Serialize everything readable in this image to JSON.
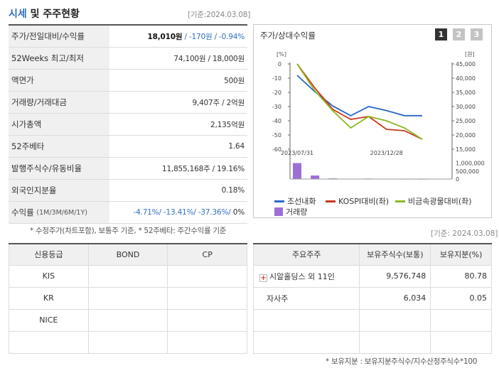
{
  "header": {
    "title_highlight": "시세",
    "title_rest": " 및 주주현황",
    "date": "[기준:2024.03.08]"
  },
  "quote": {
    "rows": [
      {
        "key": "주가/전일대비/수익률",
        "price": "18,010원",
        "change": " / -170원 / -0.94%"
      },
      {
        "key": "52Weeks 최고/최저",
        "value": "74,100원 / 18,000원"
      },
      {
        "key": "액면가",
        "value": "500원"
      },
      {
        "key": "거래량/거래대금",
        "value": "9,407주 / 2억원"
      },
      {
        "key": "시가총액",
        "value": "2,135억원"
      },
      {
        "key": "52주베타",
        "value": "1.64"
      },
      {
        "key": "발행주식수/유동비율",
        "value": "11,855,168주 / 19.16%"
      },
      {
        "key": "외국인지분율",
        "value": "0.18%"
      },
      {
        "key": "수익률",
        "key_sub": "(1M/3M/6M/1Y)",
        "value_blue": "-4.71%/ -13.41%/ -37.36%/",
        "value_tail": " 0%"
      }
    ],
    "note": "* 수정주가(차트포함), 보통주 기준, * 52주베타: 주간수익률 기준"
  },
  "chart_panel": {
    "title": "주가/상대수익률",
    "tabs": [
      "1",
      "2",
      "3"
    ],
    "active_tab": 0,
    "left_unit": "[%]",
    "right_unit": "[원]",
    "vol_right_ticks": [
      "1,000,000",
      "500,000",
      "0"
    ]
  },
  "chart_data": {
    "type": "line",
    "x_ticks": [
      "2023/07/31",
      "2023/12/28"
    ],
    "y_left_ticks": [
      0,
      -10,
      -20,
      -30,
      -40,
      -50,
      -60
    ],
    "y_left_range": [
      -60,
      0
    ],
    "y_right_ticks": [
      45000,
      40000,
      35000,
      30000,
      25000,
      20000,
      15000
    ],
    "y_right_tick_labels": [
      "45,000",
      "40,000",
      "35,000",
      "30,000",
      "25,000",
      "20,000",
      "15,000"
    ],
    "y_right_range": [
      15000,
      45000
    ],
    "series": [
      {
        "name": "조선내화",
        "axis": "right",
        "color": "#2a67c9",
        "values": [
          41000,
          35200,
          30200,
          26800,
          30000,
          28600,
          26800,
          26800
        ]
      },
      {
        "name": "KOSPI대비(좌)",
        "axis": "left",
        "color": "#c83a1e",
        "values": [
          0,
          -17,
          -32,
          -39,
          -37,
          -46,
          -47,
          -53
        ]
      },
      {
        "name": "비금속광물대비(좌)",
        "axis": "left",
        "color": "#8ab81e",
        "values": [
          0,
          -19,
          -33,
          -45,
          -37,
          -40,
          -45,
          -53
        ]
      }
    ],
    "volume": {
      "name": "거래량",
      "color": "#9d6fd6",
      "values": [
        1000000,
        220000,
        40000,
        20000,
        30000,
        15000,
        10000,
        8000
      ],
      "range": [
        0,
        1200000
      ]
    },
    "legend_position": "bottom"
  },
  "date2": "[기준: 2024.03.08]",
  "credit": {
    "headers": [
      "신용등급",
      "BOND",
      "CP"
    ],
    "rows": [
      [
        "KIS",
        "",
        ""
      ],
      [
        "KR",
        "",
        ""
      ],
      [
        "NICE",
        "",
        ""
      ],
      [
        "",
        "",
        ""
      ]
    ]
  },
  "holders": {
    "headers": [
      "주요주주",
      "보유주식수(보통)",
      "보유지분(%)"
    ],
    "rows": [
      {
        "name": "시알홀딩스 외 11인",
        "shares": "9,576,748",
        "pct": "80.78",
        "expand": "+"
      },
      {
        "name": "자사주",
        "shares": "6,034",
        "pct": "0.05"
      },
      {
        "name": "",
        "shares": "",
        "pct": ""
      },
      {
        "name": "",
        "shares": "",
        "pct": ""
      }
    ],
    "note": "* 보유지분 : 보유지분주식수/지수산정주식수*100"
  }
}
